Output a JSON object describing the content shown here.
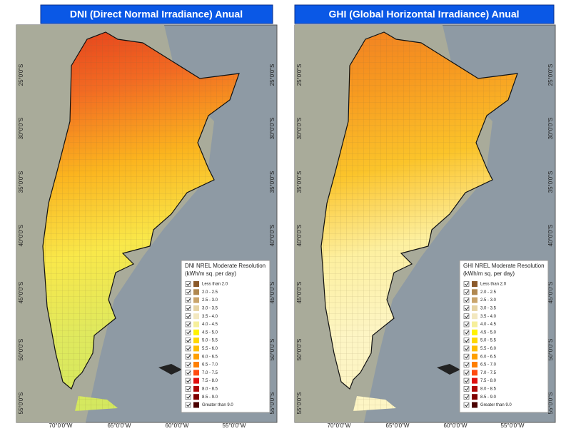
{
  "panels": [
    {
      "title": "DNI (Direct Normal Irradiance) Anual",
      "legend_title": "DNI NREL Moderate Resolution",
      "ramp": [
        "#e23a1c",
        "#f26a22",
        "#fbb41e",
        "#f9e84a",
        "#dfe95e",
        "#d3e85f"
      ]
    },
    {
      "title": "GHI (Global Horizontal Irradiance) Anual",
      "legend_title": "GHI NREL Moderate Resolution",
      "ramp": [
        "#f07a22",
        "#f79a20",
        "#fbc42a",
        "#fdf0a0",
        "#fdf5c4",
        "#fdf5c4"
      ]
    }
  ],
  "legend_units": "(kWh/m sq. per day)",
  "legend_items": [
    {
      "label": "Less than 2.0",
      "color": "#8b5a2b"
    },
    {
      "label": "2.0 - 2.5",
      "color": "#b08850"
    },
    {
      "label": "2.5 - 3.0",
      "color": "#c9a46b"
    },
    {
      "label": "3.0 - 3.5",
      "color": "#e6d3a3"
    },
    {
      "label": "3.5 - 4.0",
      "color": "#f3e8c0"
    },
    {
      "label": "4.0 - 4.5",
      "color": "#f6ef9a"
    },
    {
      "label": "4.5 - 5.0",
      "color": "#fff200"
    },
    {
      "label": "5.0 - 5.5",
      "color": "#ffd800"
    },
    {
      "label": "5.5 - 6.0",
      "color": "#ffbf00"
    },
    {
      "label": "6.0 - 6.5",
      "color": "#ffa000"
    },
    {
      "label": "6.5 - 7.0",
      "color": "#ff7f00"
    },
    {
      "label": "7.0 - 7.5",
      "color": "#ff4a10"
    },
    {
      "label": "7.5 - 8.0",
      "color": "#e01010"
    },
    {
      "label": "8.0 - 8.5",
      "color": "#b00808"
    },
    {
      "label": "8.5 - 9.0",
      "color": "#800000"
    },
    {
      "label": "Greater than 9.0",
      "color": "#4a0000"
    }
  ],
  "lat_labels": [
    "25°0'0\"S",
    "30°0'0\"S",
    "35°0'0\"S",
    "40°0'0\"S",
    "45°0'0\"S",
    "50°0'0\"S",
    "55°0'0\"S"
  ],
  "lon_labels": [
    "70°0'0\"W",
    "65°0'0\"W",
    "60°0'0\"W",
    "55°0'0\"W"
  ]
}
